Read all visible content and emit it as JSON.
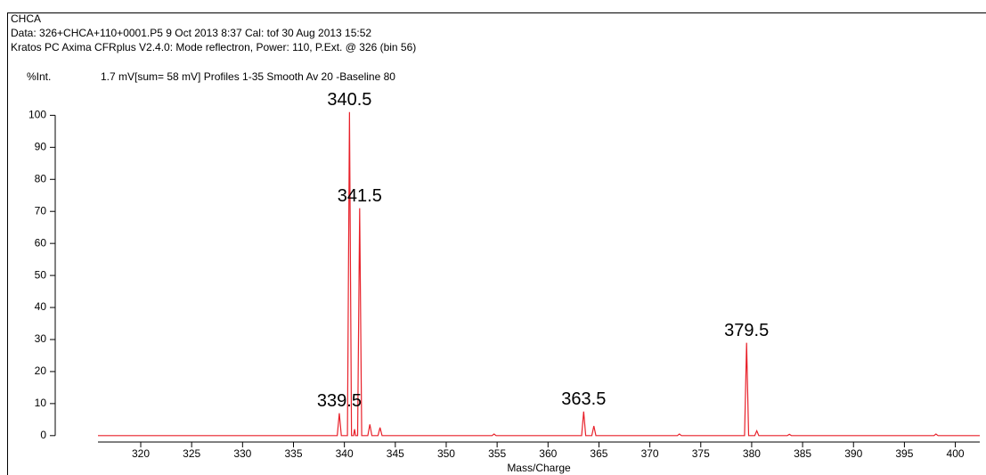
{
  "chart_data": {
    "type": "line",
    "header_lines": [
      "CHCA",
      "Data: 326+CHCA+110+0001.P5 9 Oct 2013 8:37 Cal: tof 30 Aug 2013 15:52",
      "Kratos PC Axima CFRplus V2.4.0: Mode reflectron, Power: 110, P.Ext. @ 326 (bin 56)"
    ],
    "subtitle": "1.7 mV[sum= 58 mV]  Profiles 1-35 Smooth Av 20 -Baseline 80",
    "ylabel": "%Int.",
    "xlabel": "Mass/Charge",
    "xlim": [
      315.8,
      402.4
    ],
    "ylim": [
      -2,
      104
    ],
    "xticks": [
      320,
      325,
      330,
      335,
      340,
      345,
      350,
      355,
      360,
      365,
      370,
      375,
      380,
      385,
      390,
      395,
      400
    ],
    "yticks": [
      0,
      10,
      20,
      30,
      40,
      50,
      60,
      70,
      80,
      90,
      100
    ],
    "x": [
      315.8,
      338.5,
      339.3,
      339.5,
      339.7,
      340.3,
      340.5,
      340.7,
      340.9,
      341.0,
      341.1,
      341.3,
      341.5,
      341.7,
      342.3,
      342.5,
      342.7,
      343.3,
      343.5,
      343.7,
      354.5,
      354.7,
      354.9,
      363.3,
      363.5,
      363.7,
      364.3,
      364.5,
      364.7,
      372.7,
      372.9,
      373.1,
      379.3,
      379.5,
      379.7,
      380.3,
      380.5,
      380.7,
      383.5,
      383.7,
      383.9,
      397.9,
      398.1,
      398.3,
      402.4
    ],
    "series": [
      {
        "color": "#e8212a",
        "values": [
          0,
          0,
          0,
          7,
          0,
          0,
          101,
          0,
          0,
          2,
          0,
          0,
          71,
          0,
          0,
          3.5,
          0,
          0,
          2.5,
          0,
          0,
          0.5,
          0,
          0,
          7.5,
          0,
          0,
          3,
          0,
          0,
          0.5,
          0,
          0,
          29,
          0,
          0,
          1.5,
          0,
          0,
          0.4,
          0,
          0,
          0.5,
          0,
          0
        ]
      }
    ],
    "peak_labels": [
      339.5,
      340.5,
      341.5,
      363.5,
      379.5
    ]
  }
}
